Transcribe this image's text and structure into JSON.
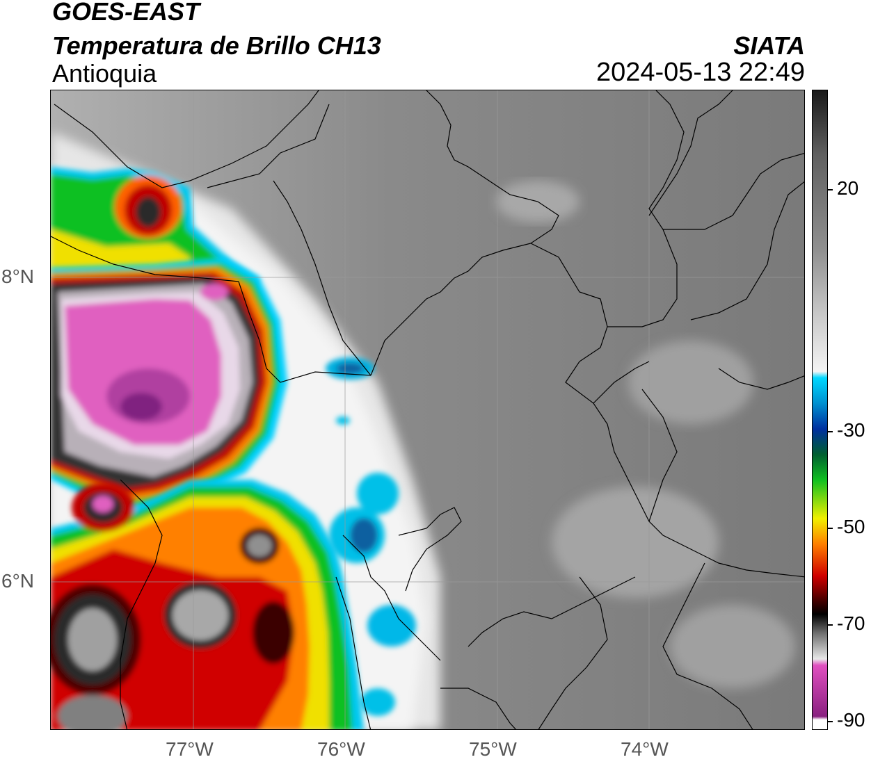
{
  "header": {
    "satellite": "GOES-EAST",
    "product": "Temperatura de Brillo CH13",
    "region": "Antioquia",
    "agency": "SIATA",
    "datetime": "2024-05-13 22:49"
  },
  "map": {
    "lat_labels": [
      "8°N",
      "6°N"
    ],
    "lon_labels": [
      "77°W",
      "76°W",
      "75°W",
      "74°W"
    ],
    "gridlines": true,
    "extent": {
      "lon": [
        -77.95,
        -73.0
      ],
      "lat": [
        4.8,
        9.0
      ]
    }
  },
  "colorbar": {
    "tick_labels": [
      "20",
      "-30",
      "-50",
      "-70",
      "-90"
    ],
    "tick_values": [
      20,
      -30,
      -50,
      -70,
      -90
    ],
    "range": [
      -92,
      32
    ],
    "colors": {
      "warm": "#1a1a1a",
      "cold_gray": "#e8e8e8",
      "cyan": "#00d8ff",
      "blue": "#0030a0",
      "green": "#10c020",
      "yellow": "#f0f000",
      "orange": "#ff8000",
      "red": "#d00000",
      "dark_red": "#400000",
      "pink": "#e050c0",
      "purple": "#8a2080"
    }
  }
}
